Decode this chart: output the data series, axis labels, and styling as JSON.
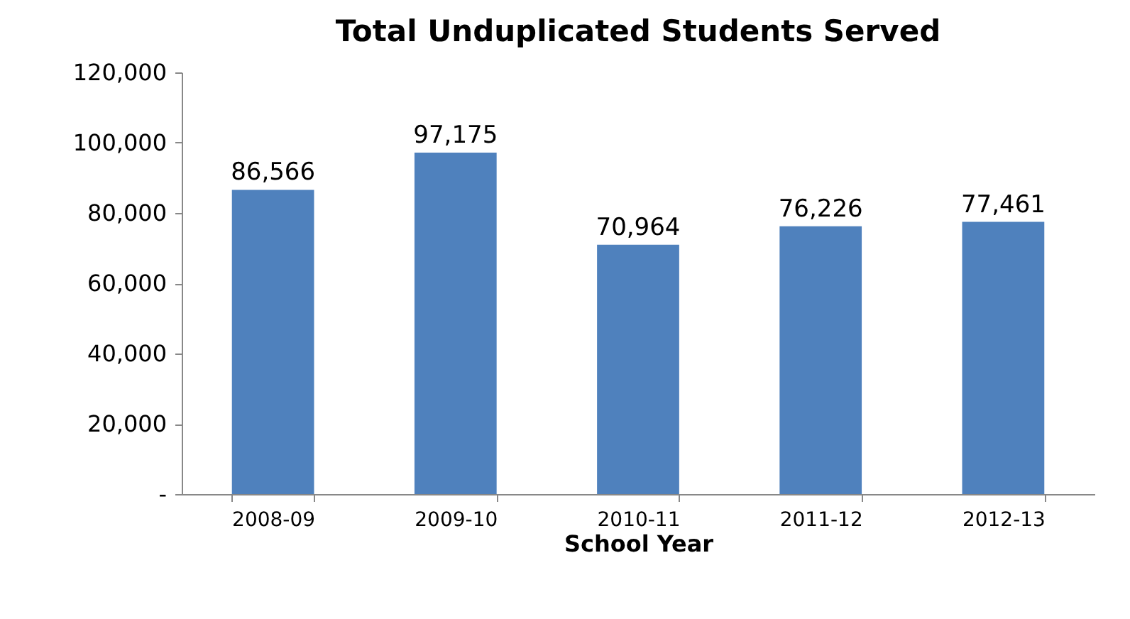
{
  "chart_data": {
    "type": "bar",
    "title": "Total Unduplicated Students Served",
    "xlabel": "School Year",
    "categories": [
      "2008-09",
      "2009-10",
      "2010-11",
      "2011-12",
      "2012-13"
    ],
    "values": [
      86566,
      97175,
      70964,
      76226,
      77461
    ],
    "color": "#4f81bd",
    "ylim": [
      0,
      120000
    ],
    "yticks": [
      {
        "value": 0,
        "label": "-"
      },
      {
        "value": 20000,
        "label": "20,000"
      },
      {
        "value": 40000,
        "label": "40,000"
      },
      {
        "value": 60000,
        "label": "60,000"
      },
      {
        "value": 80000,
        "label": "80,000"
      },
      {
        "value": 100000,
        "label": "100,000"
      },
      {
        "value": 120000,
        "label": "120,000"
      }
    ],
    "value_labels": [
      "86,566",
      "97,175",
      "70,964",
      "76,226",
      "77,461"
    ]
  }
}
